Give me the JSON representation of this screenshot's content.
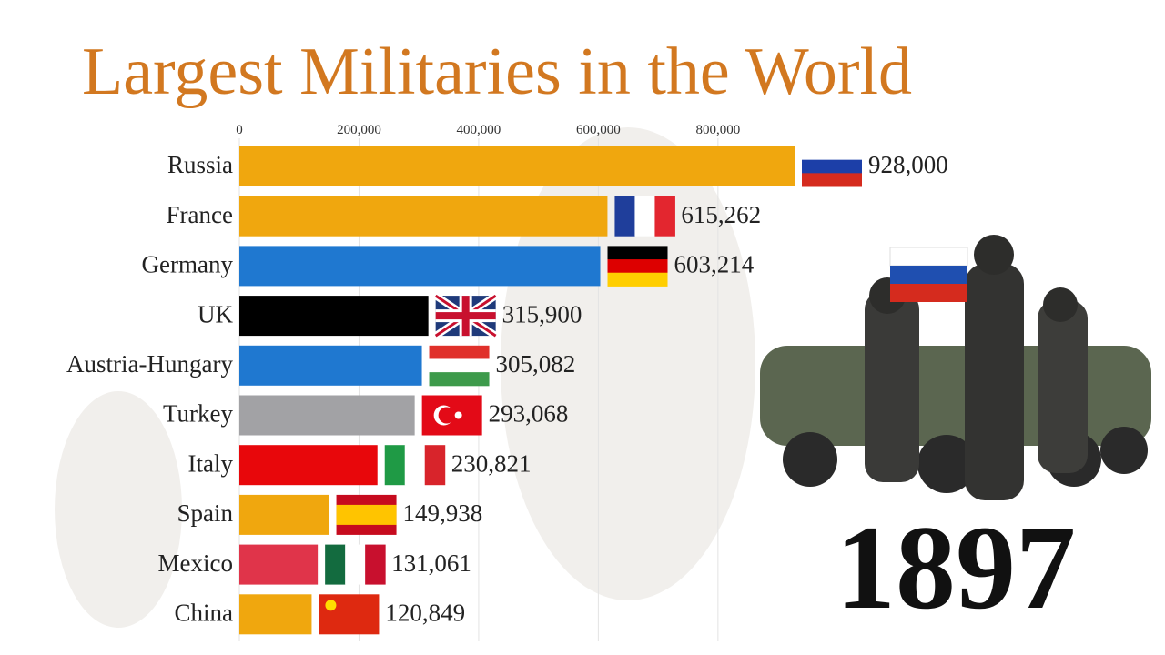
{
  "chart_data": {
    "type": "bar",
    "orientation": "horizontal",
    "title": "Largest Militaries in the World",
    "categories": [
      "Russia",
      "France",
      "Germany",
      "UK",
      "Austria-Hungary",
      "Turkey",
      "Italy",
      "Spain",
      "Mexico",
      "China"
    ],
    "values": [
      928000,
      615262,
      603214,
      315900,
      305082,
      293068,
      230821,
      149938,
      131061,
      120849
    ],
    "value_labels": [
      "928,000",
      "615,262",
      "603,214",
      "315,900",
      "305,082",
      "293,068",
      "230,821",
      "149,938",
      "131,061",
      "120,849"
    ],
    "colors": [
      "#f0a70e",
      "#f0a70e",
      "#1f78d0",
      "#000000",
      "#1f78d0",
      "#a2a2a5",
      "#e8070b",
      "#f0a70e",
      "#e0344a",
      "#f0a70e"
    ],
    "xlim": [
      0,
      928000
    ],
    "xticks": [
      0,
      {
        "value": 200000,
        "label": "200,000"
      },
      {
        "value": 400000,
        "label": "400,000"
      },
      {
        "value": 600000,
        "label": "600,000"
      },
      {
        "value": 800000,
        "label": "800,000"
      }
    ],
    "grid": true,
    "annotations": [
      "1897"
    ]
  }
}
